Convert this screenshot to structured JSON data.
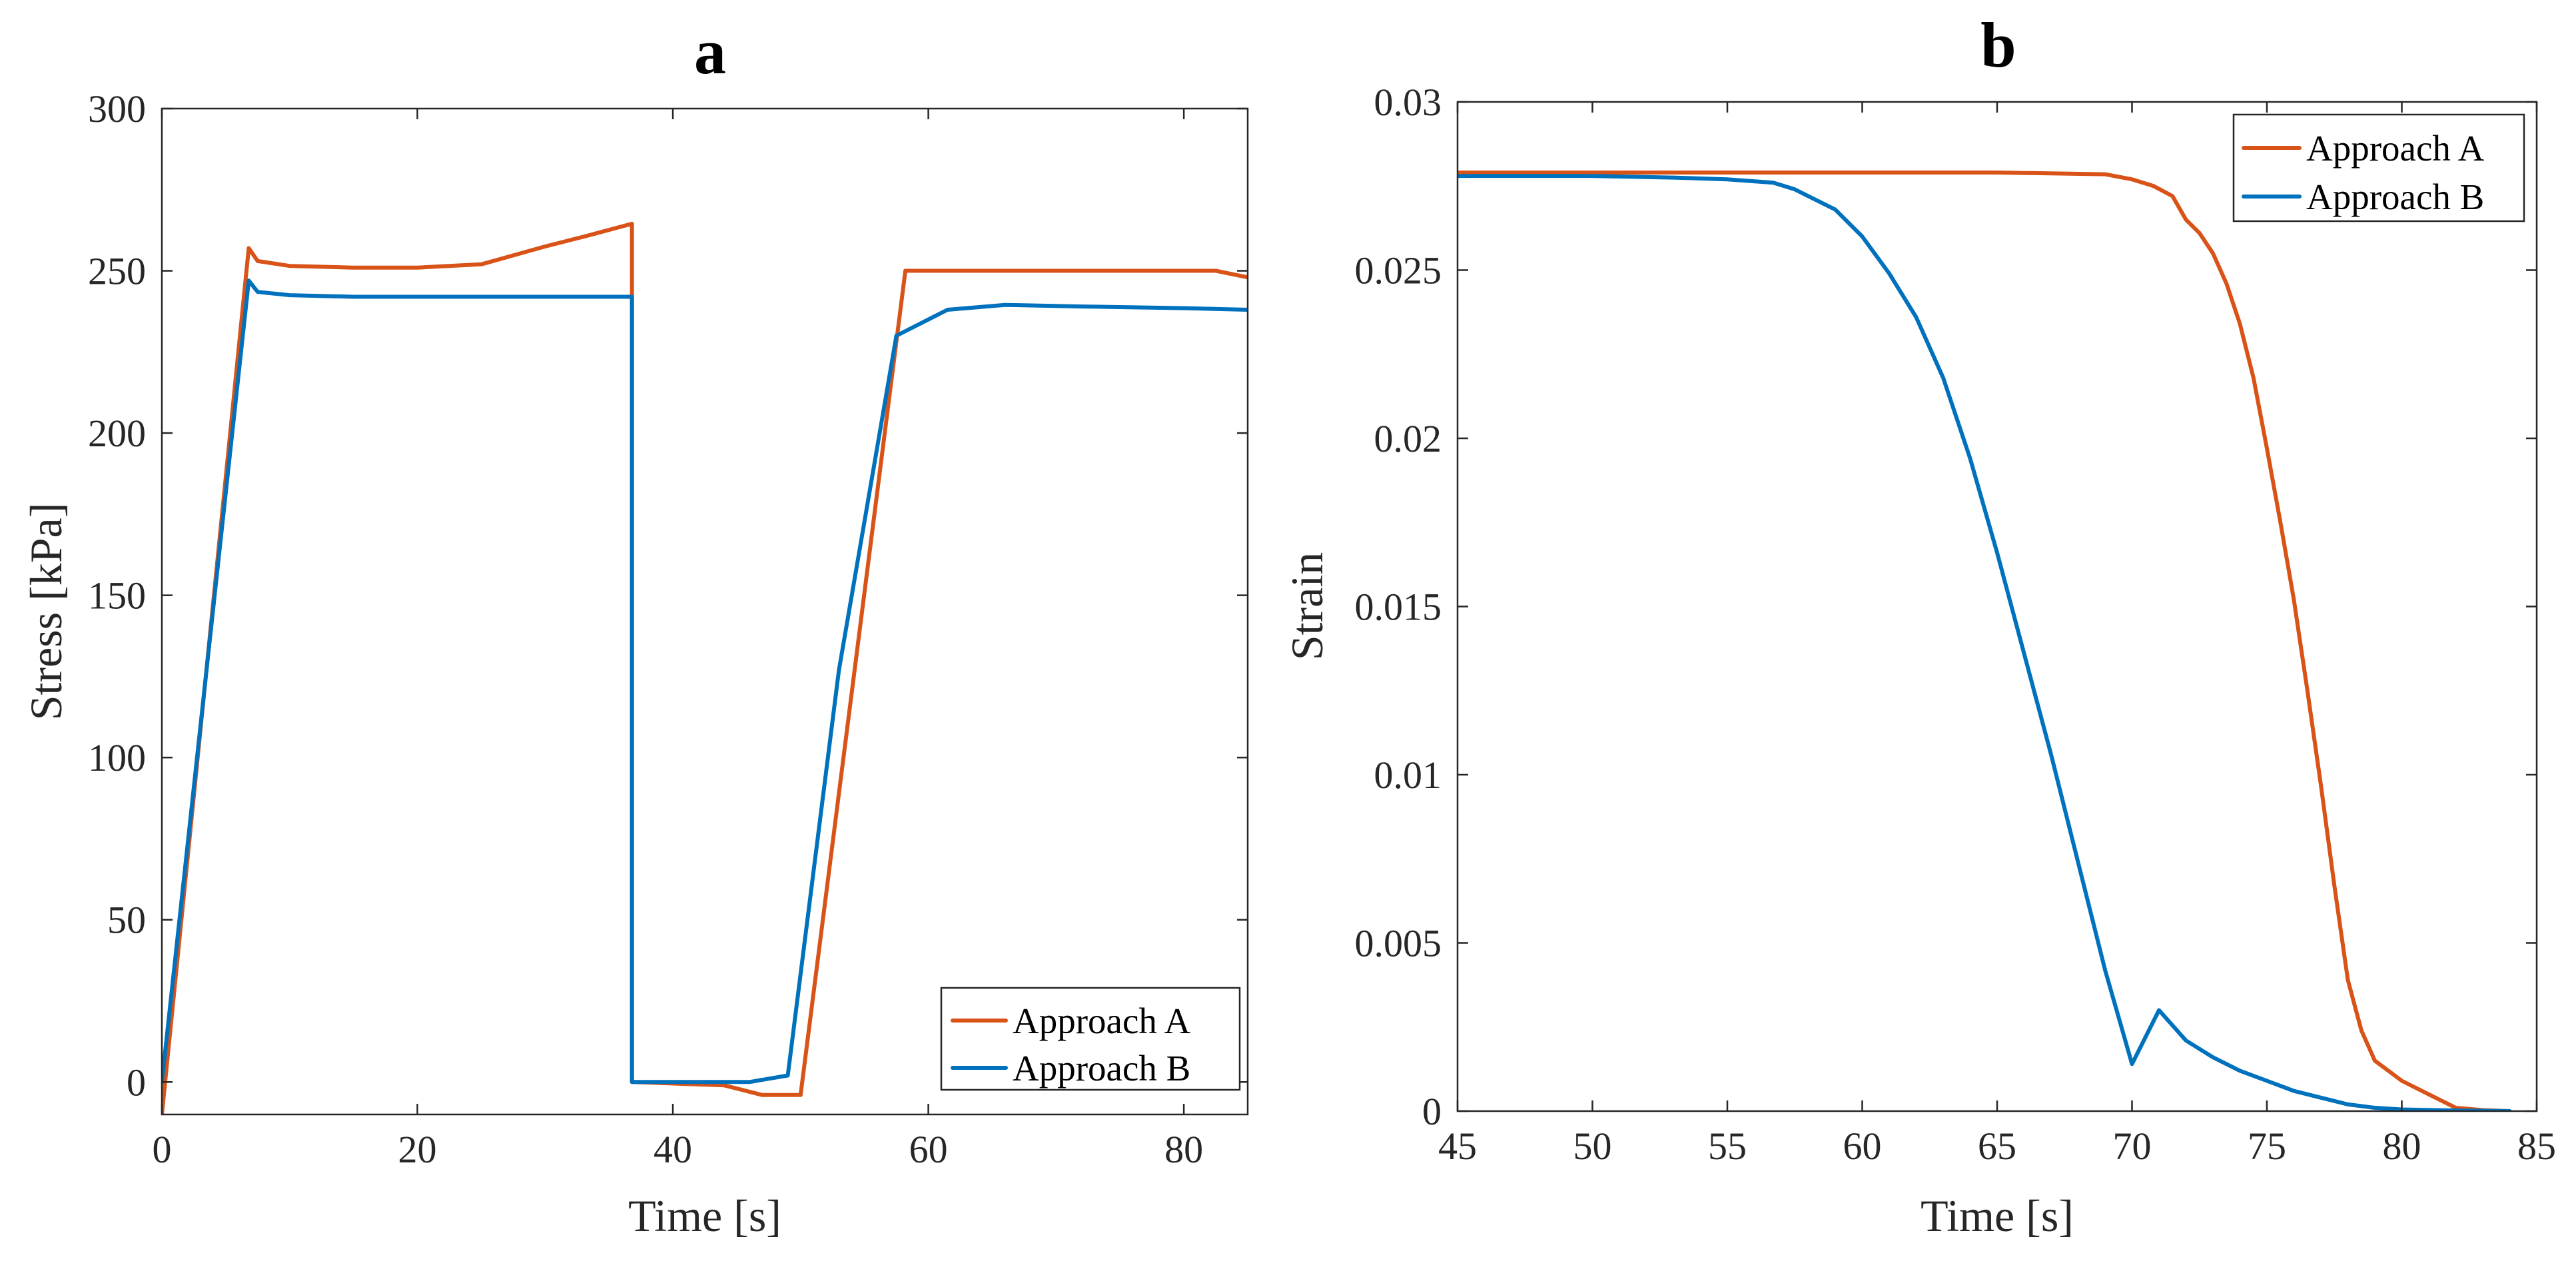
{
  "colors": {
    "approach_a": "#D95319",
    "approach_b": "#0072BD",
    "axis": "#262626"
  },
  "chart_data": [
    {
      "type": "line",
      "panel": "a",
      "title": "a",
      "xlabel": "Time [s]",
      "ylabel": "Stress [kPa]",
      "xlim": [
        0,
        85
      ],
      "ylim": [
        -10,
        300
      ],
      "xticks": [
        0,
        20,
        40,
        60,
        80
      ],
      "xtick_labels": [
        "0",
        "20",
        "40",
        "60",
        "80"
      ],
      "yticks": [
        0,
        50,
        100,
        150,
        200,
        250,
        300
      ],
      "ytick_labels": [
        "0",
        "50",
        "100",
        "150",
        "200",
        "250",
        "300"
      ],
      "grid": false,
      "legend_position": "bottom-right",
      "series": [
        {
          "name": "Approach A",
          "color_key": "approach_a",
          "x": [
            0,
            6.8,
            7.5,
            10,
            15,
            20,
            25,
            30,
            33,
            36.8,
            36.8,
            44,
            47,
            50,
            58.2,
            70,
            82.5,
            85
          ],
          "y": [
            -10,
            257,
            253,
            251.5,
            251,
            251,
            252,
            257.5,
            260.5,
            264.5,
            0,
            -1,
            -4,
            -4,
            250,
            250,
            250,
            248
          ]
        },
        {
          "name": "Approach B",
          "color_key": "approach_b",
          "x": [
            0,
            6.8,
            7.5,
            10,
            15,
            20,
            30,
            36.8,
            36.8,
            46,
            49,
            53,
            57.5,
            61.5,
            66,
            72,
            80,
            85
          ],
          "y": [
            0,
            247,
            243.5,
            242.5,
            242,
            242,
            242,
            242,
            0,
            0,
            2,
            127,
            230,
            238,
            239.5,
            239,
            238.5,
            238
          ]
        }
      ]
    },
    {
      "type": "line",
      "panel": "b",
      "title": "b",
      "xlabel": "Time [s]",
      "ylabel": "Strain",
      "xlim": [
        45,
        85
      ],
      "ylim": [
        0,
        0.03
      ],
      "xticks": [
        45,
        50,
        55,
        60,
        65,
        70,
        75,
        80,
        85
      ],
      "xtick_labels": [
        "45",
        "50",
        "55",
        "60",
        "65",
        "70",
        "75",
        "80",
        "85"
      ],
      "yticks": [
        0,
        0.005,
        0.01,
        0.015,
        0.02,
        0.025,
        0.03
      ],
      "ytick_labels": [
        "0",
        "0.005",
        "0.01",
        "0.015",
        "0.02",
        "0.025",
        "0.03"
      ],
      "grid": false,
      "legend_position": "top-right",
      "series": [
        {
          "name": "Approach A",
          "color_key": "approach_a",
          "x": [
            45,
            55,
            65,
            69,
            70,
            70.8,
            71.5,
            72,
            72.5,
            73,
            73.5,
            74,
            74.5,
            75,
            75.5,
            76,
            76.5,
            77,
            77.5,
            78,
            78.5,
            79,
            79.5,
            80,
            81,
            82,
            83,
            84
          ],
          "y": [
            0.0279,
            0.0279,
            0.0279,
            0.02785,
            0.0277,
            0.0275,
            0.0272,
            0.0265,
            0.0261,
            0.0255,
            0.0246,
            0.0234,
            0.0218,
            0.0197,
            0.0175,
            0.0152,
            0.0125,
            0.0097,
            0.0067,
            0.0039,
            0.0024,
            0.0015,
            0.0012,
            0.0009,
            0.0005,
            0.0001,
            3e-05,
            0
          ]
        },
        {
          "name": "Approach B",
          "color_key": "approach_b",
          "x": [
            45,
            50,
            53,
            55,
            56.7,
            57.5,
            58,
            59,
            60,
            61,
            62,
            63,
            64,
            65,
            66,
            67,
            68,
            69,
            70,
            71,
            72,
            73,
            74,
            75,
            76,
            77,
            78,
            79,
            80,
            82,
            84
          ],
          "y": [
            0.0278,
            0.0278,
            0.02775,
            0.0277,
            0.0276,
            0.0274,
            0.0272,
            0.0268,
            0.026,
            0.0249,
            0.0236,
            0.0218,
            0.0194,
            0.0166,
            0.0136,
            0.0106,
            0.0074,
            0.0042,
            0.0014,
            0.003,
            0.0021,
            0.0016,
            0.0012,
            0.0009,
            0.0006,
            0.0004,
            0.0002,
            0.0001,
            5e-05,
            2e-05,
            0
          ]
        }
      ]
    }
  ]
}
